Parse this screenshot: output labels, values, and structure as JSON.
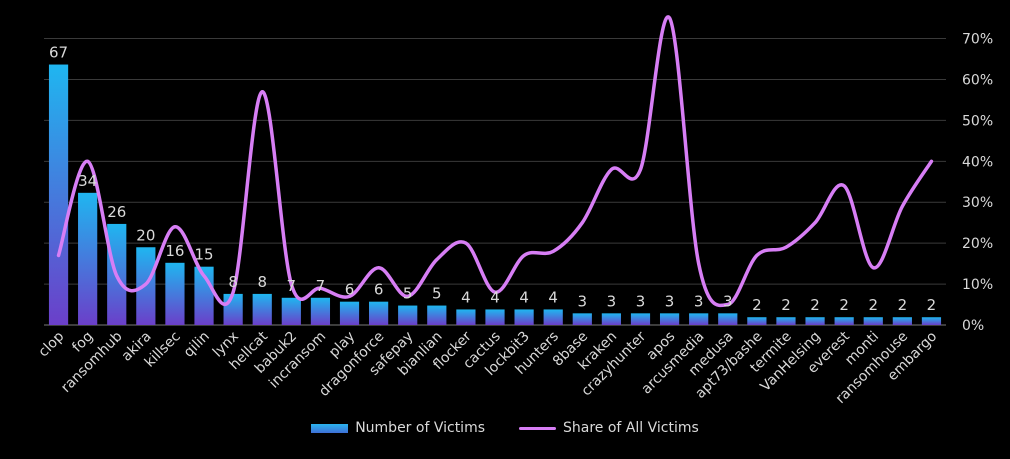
{
  "chart_data": {
    "type": "bar",
    "categories": [
      "clop",
      "fog",
      "ransomhub",
      "akira",
      "killsec",
      "qilin",
      "lynx",
      "hellcat",
      "babuk2",
      "incransom",
      "play",
      "dragonforce",
      "safepay",
      "bianlian",
      "flocker",
      "cactus",
      "lockbit3",
      "hunters",
      "8base",
      "kraken",
      "crazyhunter",
      "apos",
      "arcusmedia",
      "medusa",
      "apt73/bashe",
      "termite",
      "VanHelsing",
      "everest",
      "monti",
      "ransomhouse",
      "embargo"
    ],
    "series": [
      {
        "name": "Number of Victims",
        "type": "bar",
        "axis": "left",
        "values": [
          67,
          34,
          26,
          20,
          16,
          15,
          8,
          8,
          7,
          7,
          6,
          6,
          5,
          5,
          4,
          4,
          4,
          4,
          3,
          3,
          3,
          3,
          3,
          3,
          2,
          2,
          2,
          2,
          2,
          2,
          2
        ],
        "labels": [
          "67",
          "34",
          "26",
          "20",
          "16",
          "15",
          "8",
          "8",
          "7",
          "7",
          "6",
          "6",
          "5",
          "5",
          "4",
          "4",
          "4",
          "4",
          "3",
          "3",
          "3",
          "3",
          "3",
          "3",
          "2",
          "2",
          "2",
          "2",
          "2",
          "2",
          "2"
        ]
      },
      {
        "name": "Share of All Victims",
        "type": "line",
        "axis": "right",
        "values": [
          17,
          40,
          12,
          10,
          24,
          12,
          8,
          57,
          10,
          9,
          7,
          14,
          7,
          16,
          20,
          8,
          17,
          18,
          25,
          38,
          38,
          75,
          15,
          5,
          17,
          19,
          25,
          34,
          14,
          29,
          40
        ]
      }
    ],
    "y_left_range": [
      0,
      80
    ],
    "y_right_range": [
      0,
      76
    ],
    "y_right_ticks": [
      "0%",
      "10%",
      "20%",
      "30%",
      "40%",
      "50%",
      "60%",
      "70%"
    ],
    "grid": true,
    "legend_position": "bottom",
    "colors": {
      "background": "#000000",
      "bar_top": "#1fb6f0",
      "bar_bottom": "#6b3fc9",
      "line": "#d77ef5",
      "text": "#d9d9d9",
      "grid": "#3a3a3a"
    }
  }
}
